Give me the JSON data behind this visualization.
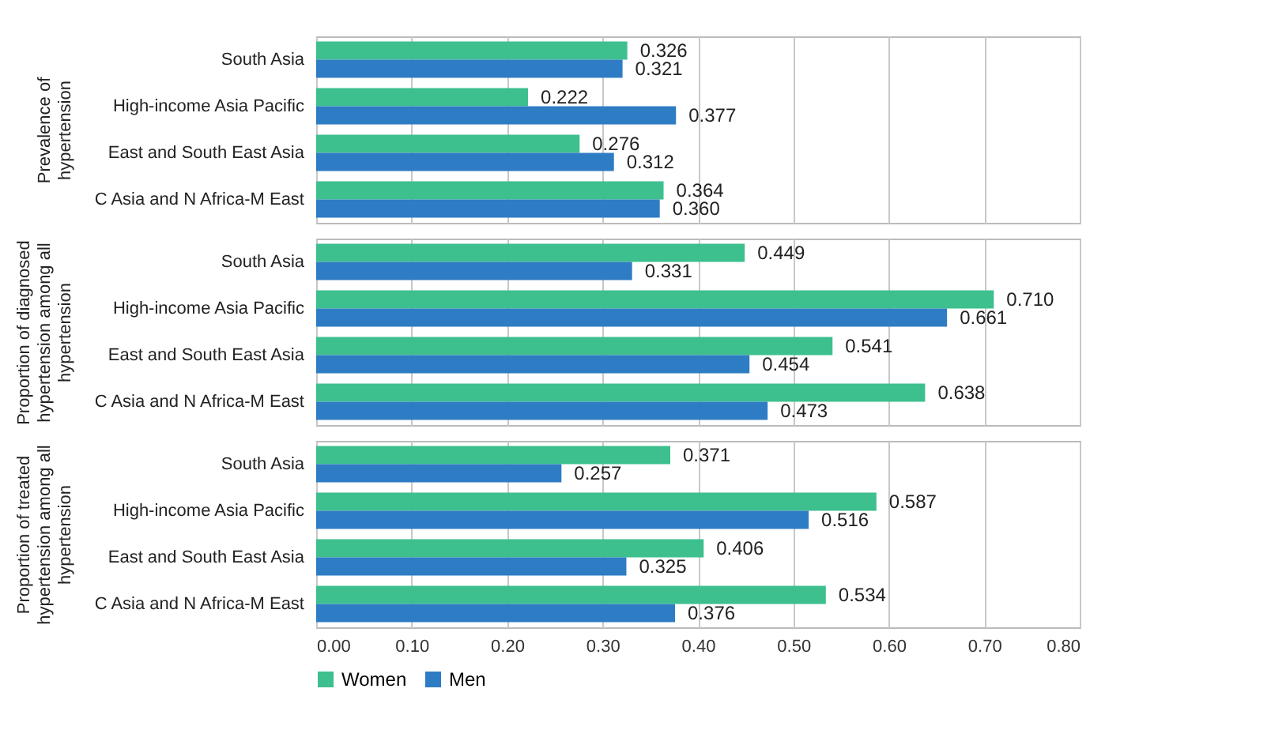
{
  "chart_data": [
    {
      "type": "bar",
      "orientation": "horizontal",
      "ylabel": "Prevalence of hypertension",
      "categories": [
        "South Asia",
        "High-income Asia Pacific",
        "East and South East Asia",
        "C Asia and N Africa-M East"
      ],
      "xlim": [
        0,
        0.8
      ],
      "xticks": [
        {
          "value": 0,
          "label": null
        },
        {
          "value": 0.1,
          "label": null
        },
        {
          "value": 0.2,
          "label": null
        },
        {
          "value": 0.3,
          "label": null
        },
        {
          "value": 0.4,
          "label": null
        },
        {
          "value": 0.5,
          "label": null
        },
        {
          "value": 0.6,
          "label": null
        },
        {
          "value": 0.7,
          "label": null
        },
        {
          "value": 0.8,
          "label": null
        }
      ],
      "grid": "x",
      "tick_labels": "y",
      "series": [
        {
          "color": "#3dbf8e",
          "values": [
            0.326,
            0.222,
            0.276,
            0.364
          ],
          "value_labels": [
            "0.326",
            "0.222",
            "0.276",
            "0.364"
          ]
        },
        {
          "color": "#2e7cc4",
          "values": [
            0.321,
            0.377,
            0.312,
            0.36
          ],
          "value_labels": [
            "0.321",
            "0.377",
            "0.312",
            "0.360"
          ]
        }
      ]
    },
    {
      "type": "bar",
      "orientation": "horizontal",
      "ylabel": "Proportion of diagnosed hypertension among all hypertension",
      "categories": [
        "South Asia",
        "High-income Asia Pacific",
        "East and South East Asia",
        "C Asia and N Africa-M East"
      ],
      "xlim": [
        0,
        0.8
      ],
      "xticks": [
        {
          "value": 0,
          "label": null
        },
        {
          "value": 0.1,
          "label": null
        },
        {
          "value": 0.2,
          "label": null
        },
        {
          "value": 0.3,
          "label": null
        },
        {
          "value": 0.4,
          "label": null
        },
        {
          "value": 0.5,
          "label": null
        },
        {
          "value": 0.6,
          "label": null
        },
        {
          "value": 0.7,
          "label": null
        },
        {
          "value": 0.8,
          "label": null
        }
      ],
      "grid": "x",
      "tick_labels": "y",
      "series": [
        {
          "color": "#3dbf8e",
          "values": [
            0.449,
            0.71,
            0.541,
            0.638
          ],
          "value_labels": [
            "0.449",
            "0.710",
            "0.541",
            "0.638"
          ]
        },
        {
          "color": "#2e7cc4",
          "values": [
            0.331,
            0.661,
            0.454,
            0.473
          ],
          "value_labels": [
            "0.331",
            "0.661",
            "0.454",
            "0.473"
          ]
        }
      ]
    },
    {
      "type": "bar",
      "orientation": "horizontal",
      "ylabel": "Proportion of treated hypertension among all hypertension",
      "categories": [
        "South Asia",
        "High-income Asia Pacific",
        "East and South East Asia",
        "C Asia and N Africa-M East"
      ],
      "xlim": [
        0,
        0.8
      ],
      "xticks": [
        {
          "value": 0,
          "label": "0.00"
        },
        {
          "value": 0.1,
          "label": "0.10"
        },
        {
          "value": 0.2,
          "label": "0.20"
        },
        {
          "value": 0.3,
          "label": "0.30"
        },
        {
          "value": 0.4,
          "label": "0.40"
        },
        {
          "value": 0.5,
          "label": "0.50"
        },
        {
          "value": 0.6,
          "label": "0.60"
        },
        {
          "value": 0.7,
          "label": "0.70"
        },
        {
          "value": 0.8,
          "label": "0.80"
        }
      ],
      "grid": "x",
      "legend": "bottom",
      "series": [
        {
          "name": "Women",
          "color": "#3dbf8e",
          "values": [
            0.371,
            0.587,
            0.406,
            0.534
          ],
          "value_labels": [
            "0.371",
            "0.587",
            "0.406",
            "0.534"
          ]
        },
        {
          "name": "Men",
          "color": "#2e7cc4",
          "values": [
            0.257,
            0.516,
            0.325,
            0.376
          ],
          "value_labels": [
            "0.257",
            "0.516",
            "0.325",
            "0.376"
          ]
        }
      ]
    }
  ]
}
